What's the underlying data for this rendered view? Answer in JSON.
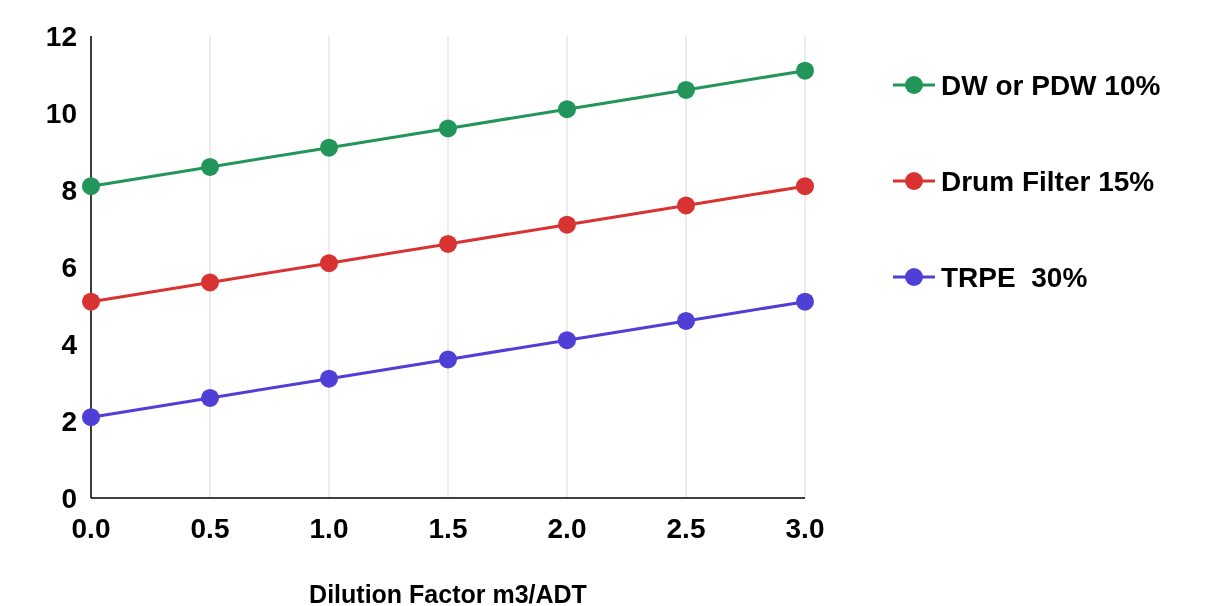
{
  "chart_data": {
    "type": "line",
    "xlabel": "Dilution Factor m3/ADT",
    "x": [
      0,
      0.5,
      1,
      1.5,
      2,
      2.5,
      3
    ],
    "series": [
      {
        "name": "DW or PDW 10%",
        "color": "#22955a",
        "values": [
          8.1,
          8.6,
          9.1,
          9.6,
          10.1,
          10.6,
          11.1
        ]
      },
      {
        "name": "Drum Filter 15%",
        "color": "#d93232",
        "values": [
          5.1,
          5.6,
          6.1,
          6.6,
          7.1,
          7.6,
          8.1
        ]
      },
      {
        "name": "TRPE  30%",
        "color": "#4f3fd6",
        "values": [
          2.1,
          2.6,
          3.1,
          3.6,
          4.1,
          4.6,
          5.1
        ]
      }
    ],
    "xlim": [
      0,
      3
    ],
    "xticks": [
      {
        "value": 0,
        "label": "0.0"
      },
      {
        "value": 0.5,
        "label": "0.5"
      },
      {
        "value": 1,
        "label": "1.0"
      },
      {
        "value": 1.5,
        "label": "1.5"
      },
      {
        "value": 2,
        "label": "2.0"
      },
      {
        "value": 2.5,
        "label": "2.5"
      },
      {
        "value": 3,
        "label": "3.0"
      }
    ],
    "ylim": [
      0,
      12
    ],
    "yticks": [
      0,
      2,
      4,
      6,
      8,
      10,
      12
    ],
    "grid": "x",
    "legend": "right",
    "marker": "circle",
    "line_style": "solid"
  }
}
